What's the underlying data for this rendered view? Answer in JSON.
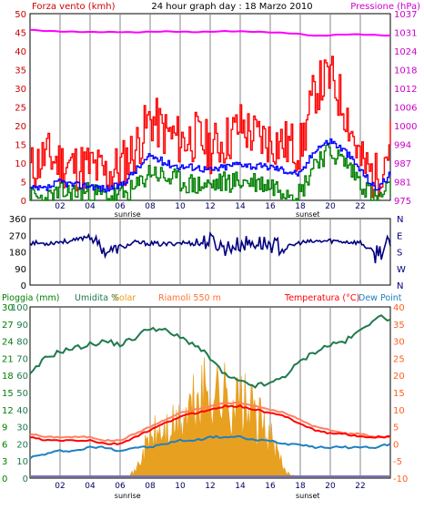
{
  "header": {
    "left_label": "Forza vento (kmh)",
    "title": "24 hour graph day : 18 Marzo 2010",
    "right_label": "Pressione (hPa)"
  },
  "colors": {
    "background": "#ffffff",
    "frame": "#000000",
    "grid_vertical": "#b4b4b4",
    "wind_gust": "#ff0000",
    "wind_average": "#0000ff",
    "wind_min": "#008000",
    "pressure": "#ff00ff",
    "direction": "#000080",
    "rain_axis": "#008000",
    "humidity": "#1f7a4d",
    "solar": "#e8a020",
    "temperature": "#ff0000",
    "temperature_light": "#ff8060",
    "dewpoint": "#2080c0",
    "header_title": "#000000",
    "left_label": "#cc0000",
    "right_label": "#cc00cc",
    "tick_labels_hour": "#000060"
  },
  "chart_data": [
    {
      "type": "line",
      "panel": "wind_pressure",
      "x_ticks": [
        "02",
        "04",
        "06",
        "08",
        "10",
        "12",
        "14",
        "16",
        "18",
        "20",
        "22"
      ],
      "x_range_hours": [
        0,
        24
      ],
      "x_annotations": [
        {
          "hour": 6.5,
          "label": "sunrise"
        },
        {
          "hour": 18.5,
          "label": "sunset"
        }
      ],
      "left_axis": {
        "label": "Forza vento (kmh)",
        "ylim": [
          0,
          50
        ],
        "ticks": [
          "0",
          "5",
          "10",
          "15",
          "20",
          "25",
          "30",
          "35",
          "40",
          "45",
          "50"
        ]
      },
      "right_axis": {
        "label": "Pressione (hPa)",
        "ylim": [
          975,
          1038
        ],
        "ticks": [
          "975",
          "981",
          "987",
          "994",
          "1000",
          "1006",
          "1012",
          "1018",
          "1024",
          "1031",
          "1037"
        ]
      },
      "x": [
        0,
        1,
        2,
        3,
        4,
        5,
        6,
        7,
        8,
        9,
        10,
        11,
        12,
        13,
        14,
        15,
        16,
        17,
        18,
        19,
        20,
        21,
        22,
        23,
        24
      ],
      "series": [
        {
          "key": "gust",
          "axis": "left",
          "values": [
            8,
            12,
            10,
            9,
            9,
            7,
            9,
            14,
            22,
            18,
            16,
            17,
            14,
            16,
            20,
            17,
            16,
            15,
            14,
            30,
            33,
            24,
            10,
            6,
            16
          ]
        },
        {
          "key": "average",
          "axis": "left",
          "values": [
            3,
            3,
            5,
            4,
            4,
            3,
            4,
            8,
            12,
            10,
            9,
            9,
            8,
            9,
            10,
            9,
            9,
            8,
            7,
            14,
            16,
            13,
            8,
            3,
            7
          ]
        },
        {
          "key": "min",
          "axis": "left",
          "values": [
            1,
            0,
            2,
            2,
            2,
            1,
            1,
            3,
            8,
            6,
            5,
            4,
            4,
            5,
            5,
            5,
            4,
            3,
            2,
            11,
            13,
            10,
            5,
            0,
            3
          ]
        },
        {
          "key": "pressure",
          "axis": "right",
          "values": [
            1032.5,
            1032.2,
            1032.0,
            1031.9,
            1031.8,
            1031.8,
            1031.8,
            1031.7,
            1031.9,
            1032.0,
            1031.9,
            1031.8,
            1031.9,
            1032.1,
            1032.0,
            1031.9,
            1031.7,
            1031.5,
            1031.1,
            1030.5,
            1030.7,
            1031.0,
            1031.0,
            1030.8,
            1030.6
          ]
        }
      ]
    },
    {
      "type": "scatter",
      "panel": "wind_direction",
      "x_range_hours": [
        0,
        24
      ],
      "left_axis": {
        "ylim": [
          0,
          360
        ],
        "ticks": [
          "0",
          "90",
          "180",
          "270",
          "360"
        ]
      },
      "right_axis": {
        "ticks": [
          "N",
          "W",
          "S",
          "E",
          "N"
        ]
      },
      "x": [
        0,
        1,
        2,
        3,
        4,
        5,
        6,
        7,
        8,
        9,
        10,
        11,
        12,
        13,
        14,
        15,
        16,
        17,
        18,
        19,
        20,
        21,
        22,
        23,
        24
      ],
      "values": [
        230,
        225,
        235,
        240,
        270,
        180,
        200,
        230,
        225,
        220,
        230,
        225,
        240,
        200,
        220,
        230,
        220,
        200,
        230,
        235,
        240,
        235,
        230,
        170,
        220
      ]
    },
    {
      "type": "area",
      "panel": "rain_humidity_temperature",
      "x_ticks": [
        "02",
        "04",
        "06",
        "08",
        "10",
        "12",
        "14",
        "16",
        "18",
        "20",
        "22"
      ],
      "x_range_hours": [
        0,
        24
      ],
      "x_annotations": [
        {
          "hour": 6.5,
          "label": "sunrise"
        },
        {
          "hour": 18.5,
          "label": "sunset"
        }
      ],
      "legend": [
        "Pioggia (mm)",
        "Umidita %",
        "Solar",
        "Riamoli 550 m",
        "Temperatura (°C)",
        "Dew Point"
      ],
      "left_axes": [
        {
          "label": "Pioggia (mm)",
          "ticks": [
            "0",
            "3",
            "6",
            "9",
            "12",
            "15",
            "18",
            "21",
            "24",
            "27",
            "30"
          ]
        },
        {
          "label": "Umidita %",
          "ylim": [
            0,
            100
          ],
          "ticks": [
            "0",
            "10",
            "20",
            "30",
            "40",
            "50",
            "60",
            "70",
            "80",
            "90",
            "100"
          ]
        }
      ],
      "right_axis": {
        "label": "Temperatura (°C)",
        "ylim": [
          -10,
          40
        ],
        "ticks": [
          "-10",
          "-5",
          "0",
          "5",
          "10",
          "15",
          "20",
          "25",
          "30",
          "35",
          "40"
        ]
      },
      "x": [
        0,
        1,
        2,
        3,
        4,
        5,
        6,
        7,
        8,
        9,
        10,
        11,
        12,
        13,
        14,
        15,
        16,
        17,
        18,
        19,
        20,
        21,
        22,
        23,
        24
      ],
      "series": [
        {
          "key": "humidity",
          "axis": "humidity",
          "values": [
            60,
            70,
            74,
            76,
            78,
            80,
            78,
            82,
            88,
            86,
            82,
            78,
            70,
            60,
            56,
            54,
            55,
            60,
            68,
            74,
            78,
            80,
            86,
            94,
            93
          ]
        },
        {
          "key": "solar",
          "axis": "temperature",
          "values": [
            -10,
            -10,
            -10,
            -10,
            -10,
            -10,
            -10,
            -8,
            3,
            5,
            7,
            14,
            19,
            16,
            14,
            10,
            3,
            -8,
            -10,
            -10,
            -10,
            -10,
            -10,
            -10,
            -10
          ]
        },
        {
          "key": "temperature",
          "axis": "temperature",
          "values": [
            2,
            1,
            1,
            1,
            1,
            0,
            0,
            2,
            4,
            6,
            8,
            9,
            10,
            11,
            11,
            10,
            9,
            8,
            6,
            4,
            3,
            3,
            2,
            2,
            2
          ]
        },
        {
          "key": "temperature_riamoli",
          "axis": "temperature",
          "values": [
            3,
            2,
            2,
            2,
            2,
            1,
            1,
            3,
            5,
            7,
            9,
            10,
            11,
            12,
            12,
            11,
            10,
            9,
            7,
            5,
            4,
            3,
            3,
            2,
            2
          ]
        },
        {
          "key": "dewpoint",
          "axis": "temperature",
          "values": [
            -4,
            -3,
            -2,
            -2,
            -1,
            -1,
            -2,
            -1,
            -1,
            0,
            1,
            1,
            2,
            2,
            2,
            1,
            1,
            0,
            0,
            -1,
            -1,
            -1,
            -1,
            -1,
            0
          ]
        }
      ]
    }
  ]
}
